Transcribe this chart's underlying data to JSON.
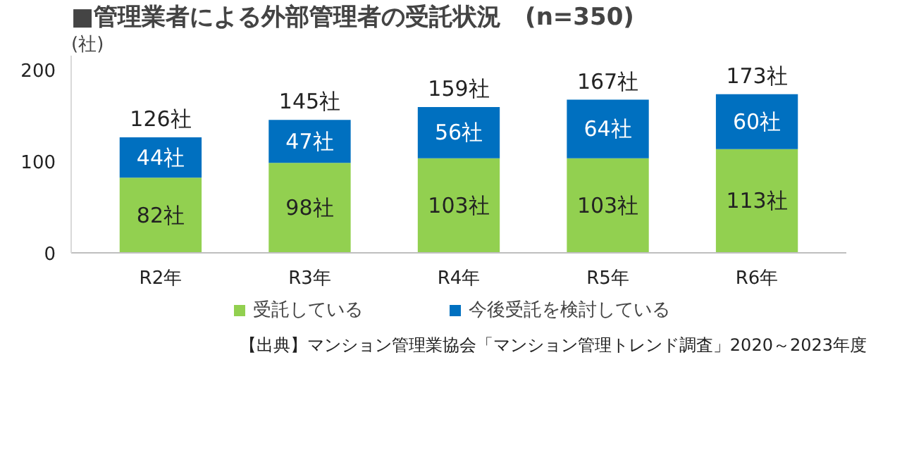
{
  "chart_data": {
    "type": "bar",
    "stacked": true,
    "title": "■管理業者による外部管理者の受託状況",
    "subtitle": "(n=350)",
    "ylabel": "(社)",
    "categories": [
      "R2年",
      "R3年",
      "R4年",
      "R5年",
      "R6年"
    ],
    "series": [
      {
        "name": "受託している",
        "color": "#92d050",
        "values": [
          82,
          98,
          103,
          103,
          113
        ],
        "value_labels": [
          "82社",
          "98社",
          "103社",
          "103社",
          "113社"
        ]
      },
      {
        "name": "今後受託を検討している",
        "color": "#0070c0",
        "values": [
          44,
          47,
          56,
          64,
          60
        ],
        "value_labels": [
          "44社",
          "47社",
          "56社",
          "64社",
          "60社"
        ]
      }
    ],
    "totals": [
      "126社",
      "145社",
      "159社",
      "167社",
      "173社"
    ],
    "ylim": [
      0,
      215
    ],
    "yticks": [
      0,
      100,
      200
    ],
    "grid": false,
    "legend": "bottom",
    "annotations": [
      "【出典】マンション管理業協会「マンション管理トレンド調査」2020～2023年度"
    ]
  }
}
